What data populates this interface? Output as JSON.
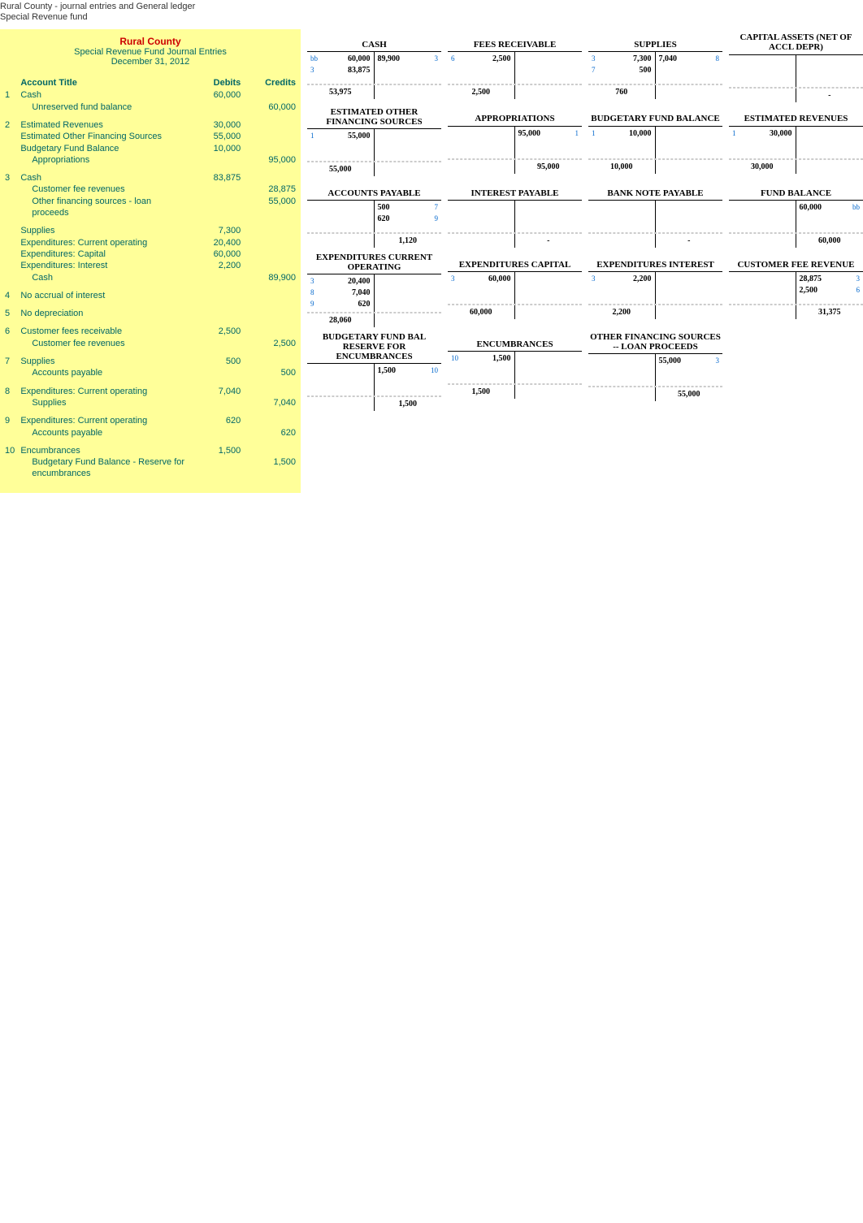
{
  "header": {
    "line1": "Rural County - journal entries and General ledger",
    "line2": "Special Revenue fund"
  },
  "journal": {
    "title1": "Rural County",
    "title2": "Special Revenue Fund Journal Entries",
    "title3": "December 31, 2012",
    "cols": {
      "acct": "Account Title",
      "deb": "Debits",
      "cred": "Credits"
    },
    "entries": [
      {
        "num": "1",
        "lines": [
          {
            "acct": "Cash",
            "deb": "60,000",
            "cred": "",
            "indent": false
          },
          {
            "acct": "Unreserved fund balance",
            "deb": "",
            "cred": "60,000",
            "indent": true
          }
        ]
      },
      {
        "num": "2",
        "lines": [
          {
            "acct": "Estimated Revenues",
            "deb": "30,000",
            "cred": "",
            "indent": false
          },
          {
            "acct": "Estimated Other Financing Sources",
            "deb": "55,000",
            "cred": "",
            "indent": false
          },
          {
            "acct": "Budgetary Fund Balance",
            "deb": "10,000",
            "cred": "",
            "indent": false
          },
          {
            "acct": "Appropriations",
            "deb": "",
            "cred": "95,000",
            "indent": true
          }
        ]
      },
      {
        "num": "3",
        "lines": [
          {
            "acct": "Cash",
            "deb": "83,875",
            "cred": "",
            "indent": false
          },
          {
            "acct": "Customer fee revenues",
            "deb": "",
            "cred": "28,875",
            "indent": true
          },
          {
            "acct": "Other financing sources - loan proceeds",
            "deb": "",
            "cred": "55,000",
            "indent": true
          }
        ]
      },
      {
        "num": "",
        "lines": [
          {
            "acct": "Supplies",
            "deb": "7,300",
            "cred": "",
            "indent": false
          },
          {
            "acct": "Expenditures: Current operating",
            "deb": "20,400",
            "cred": "",
            "indent": false
          },
          {
            "acct": "Expenditures: Capital",
            "deb": "60,000",
            "cred": "",
            "indent": false
          },
          {
            "acct": "Expenditures: Interest",
            "deb": "2,200",
            "cred": "",
            "indent": false
          },
          {
            "acct": "Cash",
            "deb": "",
            "cred": "89,900",
            "indent": true
          }
        ]
      },
      {
        "num": "4",
        "lines": [
          {
            "acct": "No accrual of interest",
            "deb": "",
            "cred": "",
            "indent": false
          }
        ]
      },
      {
        "num": "5",
        "lines": [
          {
            "acct": "No depreciation",
            "deb": "",
            "cred": "",
            "indent": false
          }
        ]
      },
      {
        "num": "6",
        "lines": [
          {
            "acct": "Customer fees receivable",
            "deb": "2,500",
            "cred": "",
            "indent": false
          },
          {
            "acct": "Customer fee revenues",
            "deb": "",
            "cred": "2,500",
            "indent": true
          }
        ]
      },
      {
        "num": "7",
        "lines": [
          {
            "acct": "Supplies",
            "deb": "500",
            "cred": "",
            "indent": false
          },
          {
            "acct": "Accounts payable",
            "deb": "",
            "cred": "500",
            "indent": true
          }
        ]
      },
      {
        "num": "8",
        "lines": [
          {
            "acct": "Expenditures: Current operating",
            "deb": "7,040",
            "cred": "",
            "indent": false
          },
          {
            "acct": "Supplies",
            "deb": "",
            "cred": "7,040",
            "indent": true
          }
        ]
      },
      {
        "num": "9",
        "lines": [
          {
            "acct": "Expenditures: Current operating",
            "deb": "620",
            "cred": "",
            "indent": false
          },
          {
            "acct": "Accounts payable",
            "deb": "",
            "cred": "620",
            "indent": true
          }
        ]
      },
      {
        "num": "10",
        "lines": [
          {
            "acct": "Encumbrances",
            "deb": "1,500",
            "cred": "",
            "indent": false
          },
          {
            "acct": "Budgetary Fund Balance - Reserve for encumbrances",
            "deb": "",
            "cred": "1,500",
            "indent": true
          }
        ]
      }
    ]
  },
  "ledger": {
    "row1": [
      {
        "title": "CASH",
        "left": [
          {
            "ref": "bb",
            "amt": "60,000"
          },
          {
            "ref": "3",
            "amt": "83,875"
          }
        ],
        "right": [
          {
            "ref": "3",
            "amt": "89,900"
          }
        ],
        "lTotal": "53,975",
        "rTotal": ""
      },
      {
        "title": "FEES RECEIVABLE",
        "left": [
          {
            "ref": "6",
            "amt": "2,500"
          }
        ],
        "right": [],
        "lTotal": "2,500",
        "rTotal": ""
      },
      {
        "title": "SUPPLIES",
        "left": [
          {
            "ref": "3",
            "amt": "7,300"
          },
          {
            "ref": "7",
            "amt": "500"
          }
        ],
        "right": [
          {
            "ref": "8",
            "amt": "7,040"
          }
        ],
        "lTotal": "760",
        "rTotal": ""
      },
      {
        "title": "CAPITAL ASSETS (NET OF ACCL DEPR)",
        "left": [],
        "right": [],
        "lTotal": "",
        "rTotal": "-"
      }
    ],
    "row2": [
      {
        "title": "ESTIMATED OTHER FINANCING SOURCES",
        "left": [
          {
            "ref": "1",
            "amt": "55,000"
          }
        ],
        "right": [],
        "lTotal": "55,000",
        "rTotal": ""
      },
      {
        "title": "APPROPRIATIONS",
        "left": [],
        "right": [
          {
            "ref": "1",
            "amt": "95,000"
          }
        ],
        "lTotal": "",
        "rTotal": "95,000"
      },
      {
        "title": "BUDGETARY FUND BALANCE",
        "left": [
          {
            "ref": "1",
            "amt": "10,000"
          }
        ],
        "right": [],
        "lTotal": "10,000",
        "rTotal": ""
      },
      {
        "title": "ESTIMATED REVENUES",
        "left": [
          {
            "ref": "1",
            "amt": "30,000"
          }
        ],
        "right": [],
        "lTotal": "30,000",
        "rTotal": ""
      }
    ],
    "row3": [
      {
        "title": "ACCOUNTS PAYABLE",
        "left": [],
        "right": [
          {
            "ref": "7",
            "amt": "500"
          },
          {
            "ref": "9",
            "amt": "620"
          }
        ],
        "lTotal": "",
        "rTotal": "1,120"
      },
      {
        "title": "INTEREST PAYABLE",
        "left": [],
        "right": [],
        "lTotal": "",
        "rTotal": "-"
      },
      {
        "title": "BANK NOTE PAYABLE",
        "left": [],
        "right": [],
        "lTotal": "",
        "rTotal": "-"
      },
      {
        "title": "FUND BALANCE",
        "left": [],
        "right": [
          {
            "ref": "bb",
            "amt": "60,000"
          }
        ],
        "lTotal": "",
        "rTotal": "60,000"
      }
    ],
    "row4": [
      {
        "title": "EXPENDITURES CURRENT OPERATING",
        "left": [
          {
            "ref": "3",
            "amt": "20,400"
          },
          {
            "ref": "8",
            "amt": "7,040"
          },
          {
            "ref": "9",
            "amt": "620"
          }
        ],
        "right": [],
        "lTotal": "28,060",
        "rTotal": ""
      },
      {
        "title": "EXPENDITURES CAPITAL",
        "left": [
          {
            "ref": "3",
            "amt": "60,000"
          }
        ],
        "right": [],
        "lTotal": "60,000",
        "rTotal": ""
      },
      {
        "title": "EXPENDITURES INTEREST",
        "left": [
          {
            "ref": "3",
            "amt": "2,200"
          }
        ],
        "right": [],
        "lTotal": "2,200",
        "rTotal": ""
      },
      {
        "title": "CUSTOMER FEE REVENUE",
        "left": [],
        "right": [
          {
            "ref": "3",
            "amt": "28,875"
          },
          {
            "ref": "6",
            "amt": "2,500"
          }
        ],
        "lTotal": "",
        "rTotal": "31,375"
      }
    ],
    "row5": [
      {
        "title": "BUDGETARY FUND BAL RESERVE FOR ENCUMBRANCES",
        "left": [],
        "right": [
          {
            "ref": "10",
            "amt": "1,500"
          }
        ],
        "lTotal": "",
        "rTotal": "1,500"
      },
      {
        "title": "ENCUMBRANCES",
        "left": [
          {
            "ref": "10",
            "amt": "1,500"
          }
        ],
        "right": [],
        "lTotal": "1,500",
        "rTotal": ""
      },
      {
        "title": "OTHER FINANCING SOURCES -- LOAN PROCEEDS",
        "left": [],
        "right": [
          {
            "ref": "3",
            "amt": "55,000"
          }
        ],
        "lTotal": "",
        "rTotal": "55,000"
      },
      {
        "title": "",
        "left": [],
        "right": [],
        "lTotal": "",
        "rTotal": ""
      }
    ]
  }
}
